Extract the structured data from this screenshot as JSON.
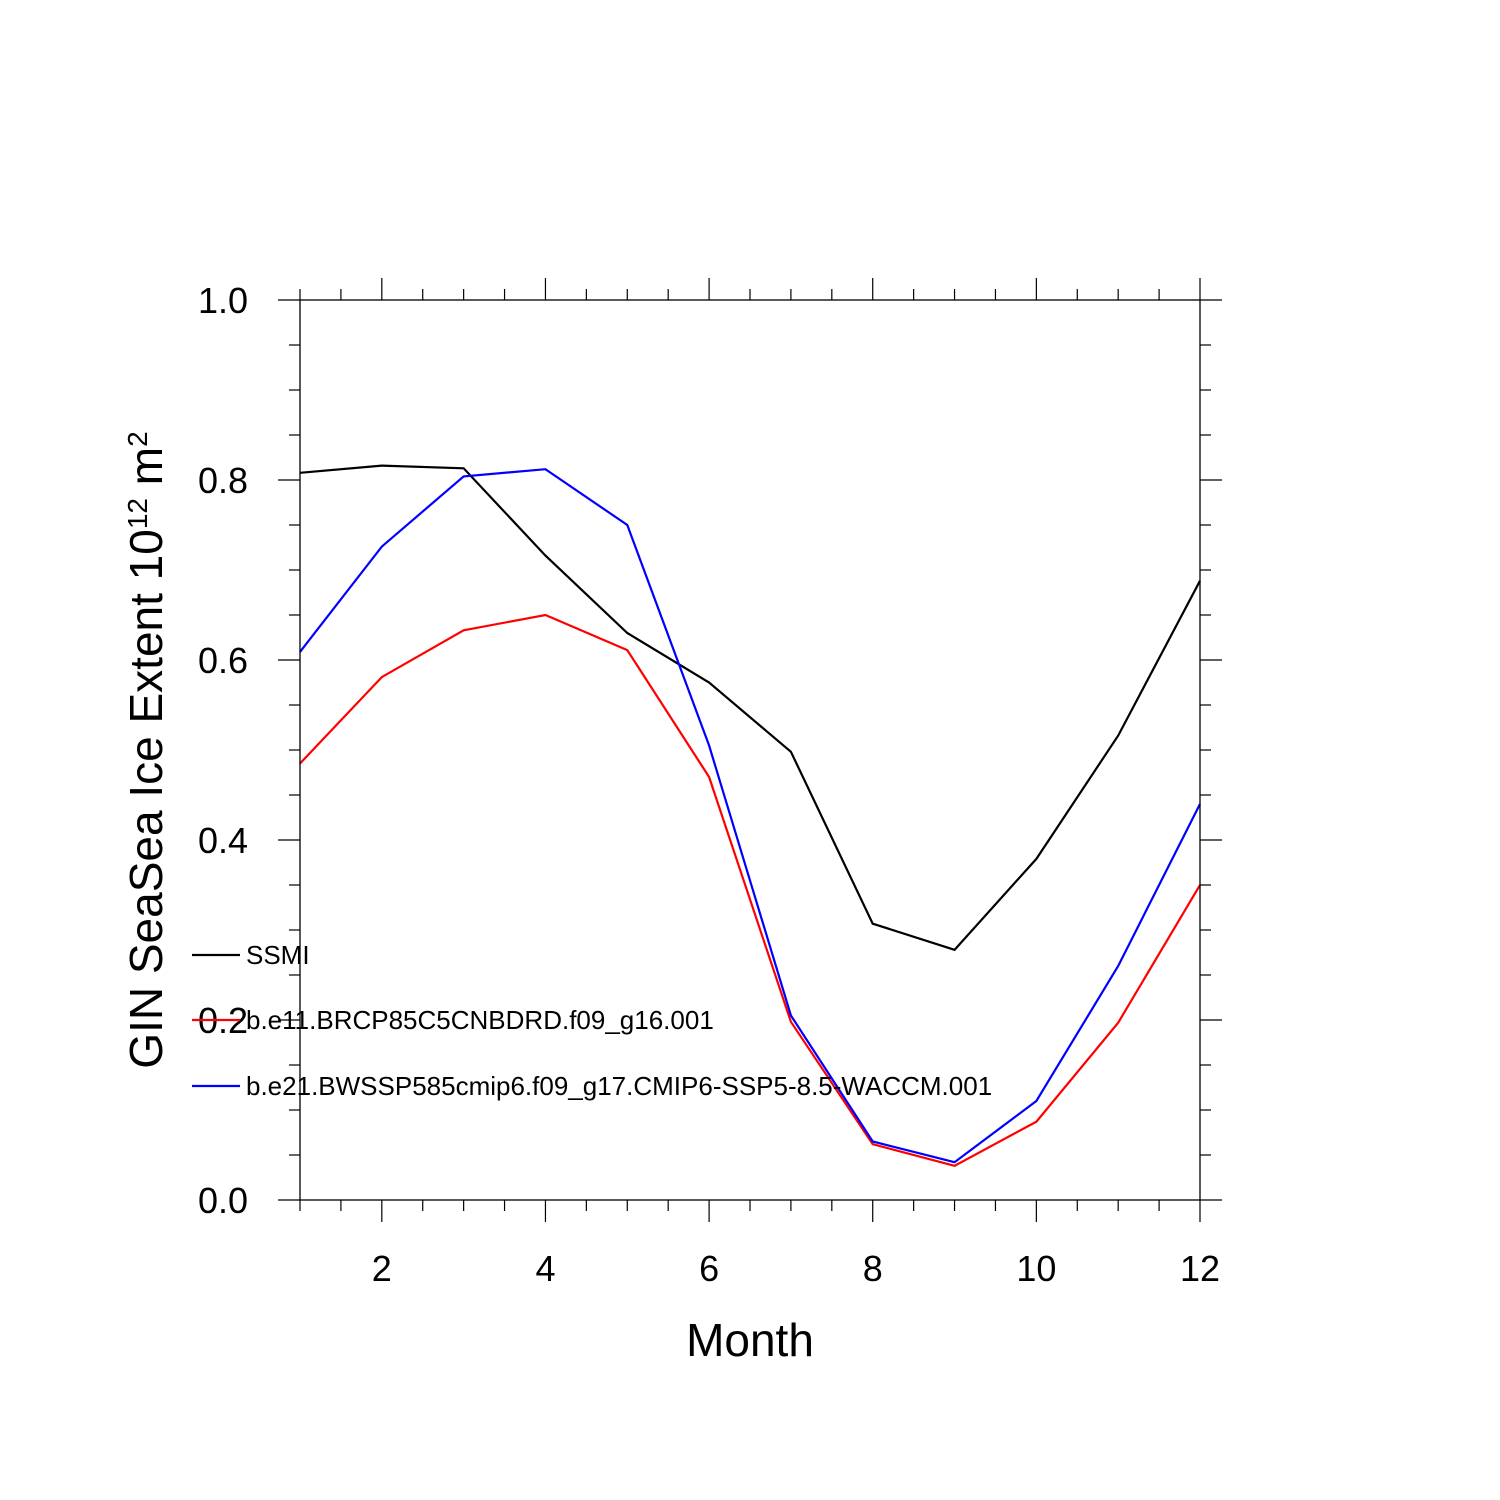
{
  "chart_data": {
    "type": "line",
    "xlabel": "Month",
    "ylabel": "GIN SeaSea Ice Extent 10",
    "ylabel_exponent": "12",
    "ylabel_unit": " m",
    "ylabel_unit_exponent": "2",
    "xlim": [
      1,
      12
    ],
    "ylim": [
      0,
      1.0
    ],
    "x_ticks": [
      2,
      4,
      6,
      8,
      10,
      12
    ],
    "x_tick_labels": [
      "2",
      "4",
      "6",
      "8",
      "10",
      "12"
    ],
    "y_ticks": [
      0,
      0.2,
      0.4,
      0.6,
      0.8,
      1.0
    ],
    "y_tick_labels": [
      "0.0",
      "0.2",
      "0.4",
      "0.6",
      "0.8",
      "1.0"
    ],
    "grid": false,
    "legend_position": "lower-left",
    "x": [
      1,
      2,
      3,
      4,
      5,
      6,
      7,
      8,
      9,
      10,
      11,
      12
    ],
    "series": [
      {
        "name": "SSMI",
        "color": "#000000",
        "values": [
          0.808,
          0.816,
          0.813,
          0.716,
          0.63,
          0.575,
          0.498,
          0.307,
          0.278,
          0.379,
          0.516,
          0.688
        ]
      },
      {
        "name": "b.e11.BRCP85C5CNBDRD.f09_g16.001",
        "color": "#ff0000",
        "values": [
          0.485,
          0.581,
          0.633,
          0.65,
          0.611,
          0.47,
          0.198,
          0.062,
          0.038,
          0.087,
          0.197,
          0.35
        ]
      },
      {
        "name": "b.e21.BWSSP585cmip6.f09_g17.CMIP6-SSP5-8.5-WACCM.001",
        "color": "#0000ff",
        "values": [
          0.609,
          0.726,
          0.804,
          0.812,
          0.75,
          0.505,
          0.205,
          0.065,
          0.042,
          0.11,
          0.26,
          0.44
        ]
      }
    ]
  }
}
